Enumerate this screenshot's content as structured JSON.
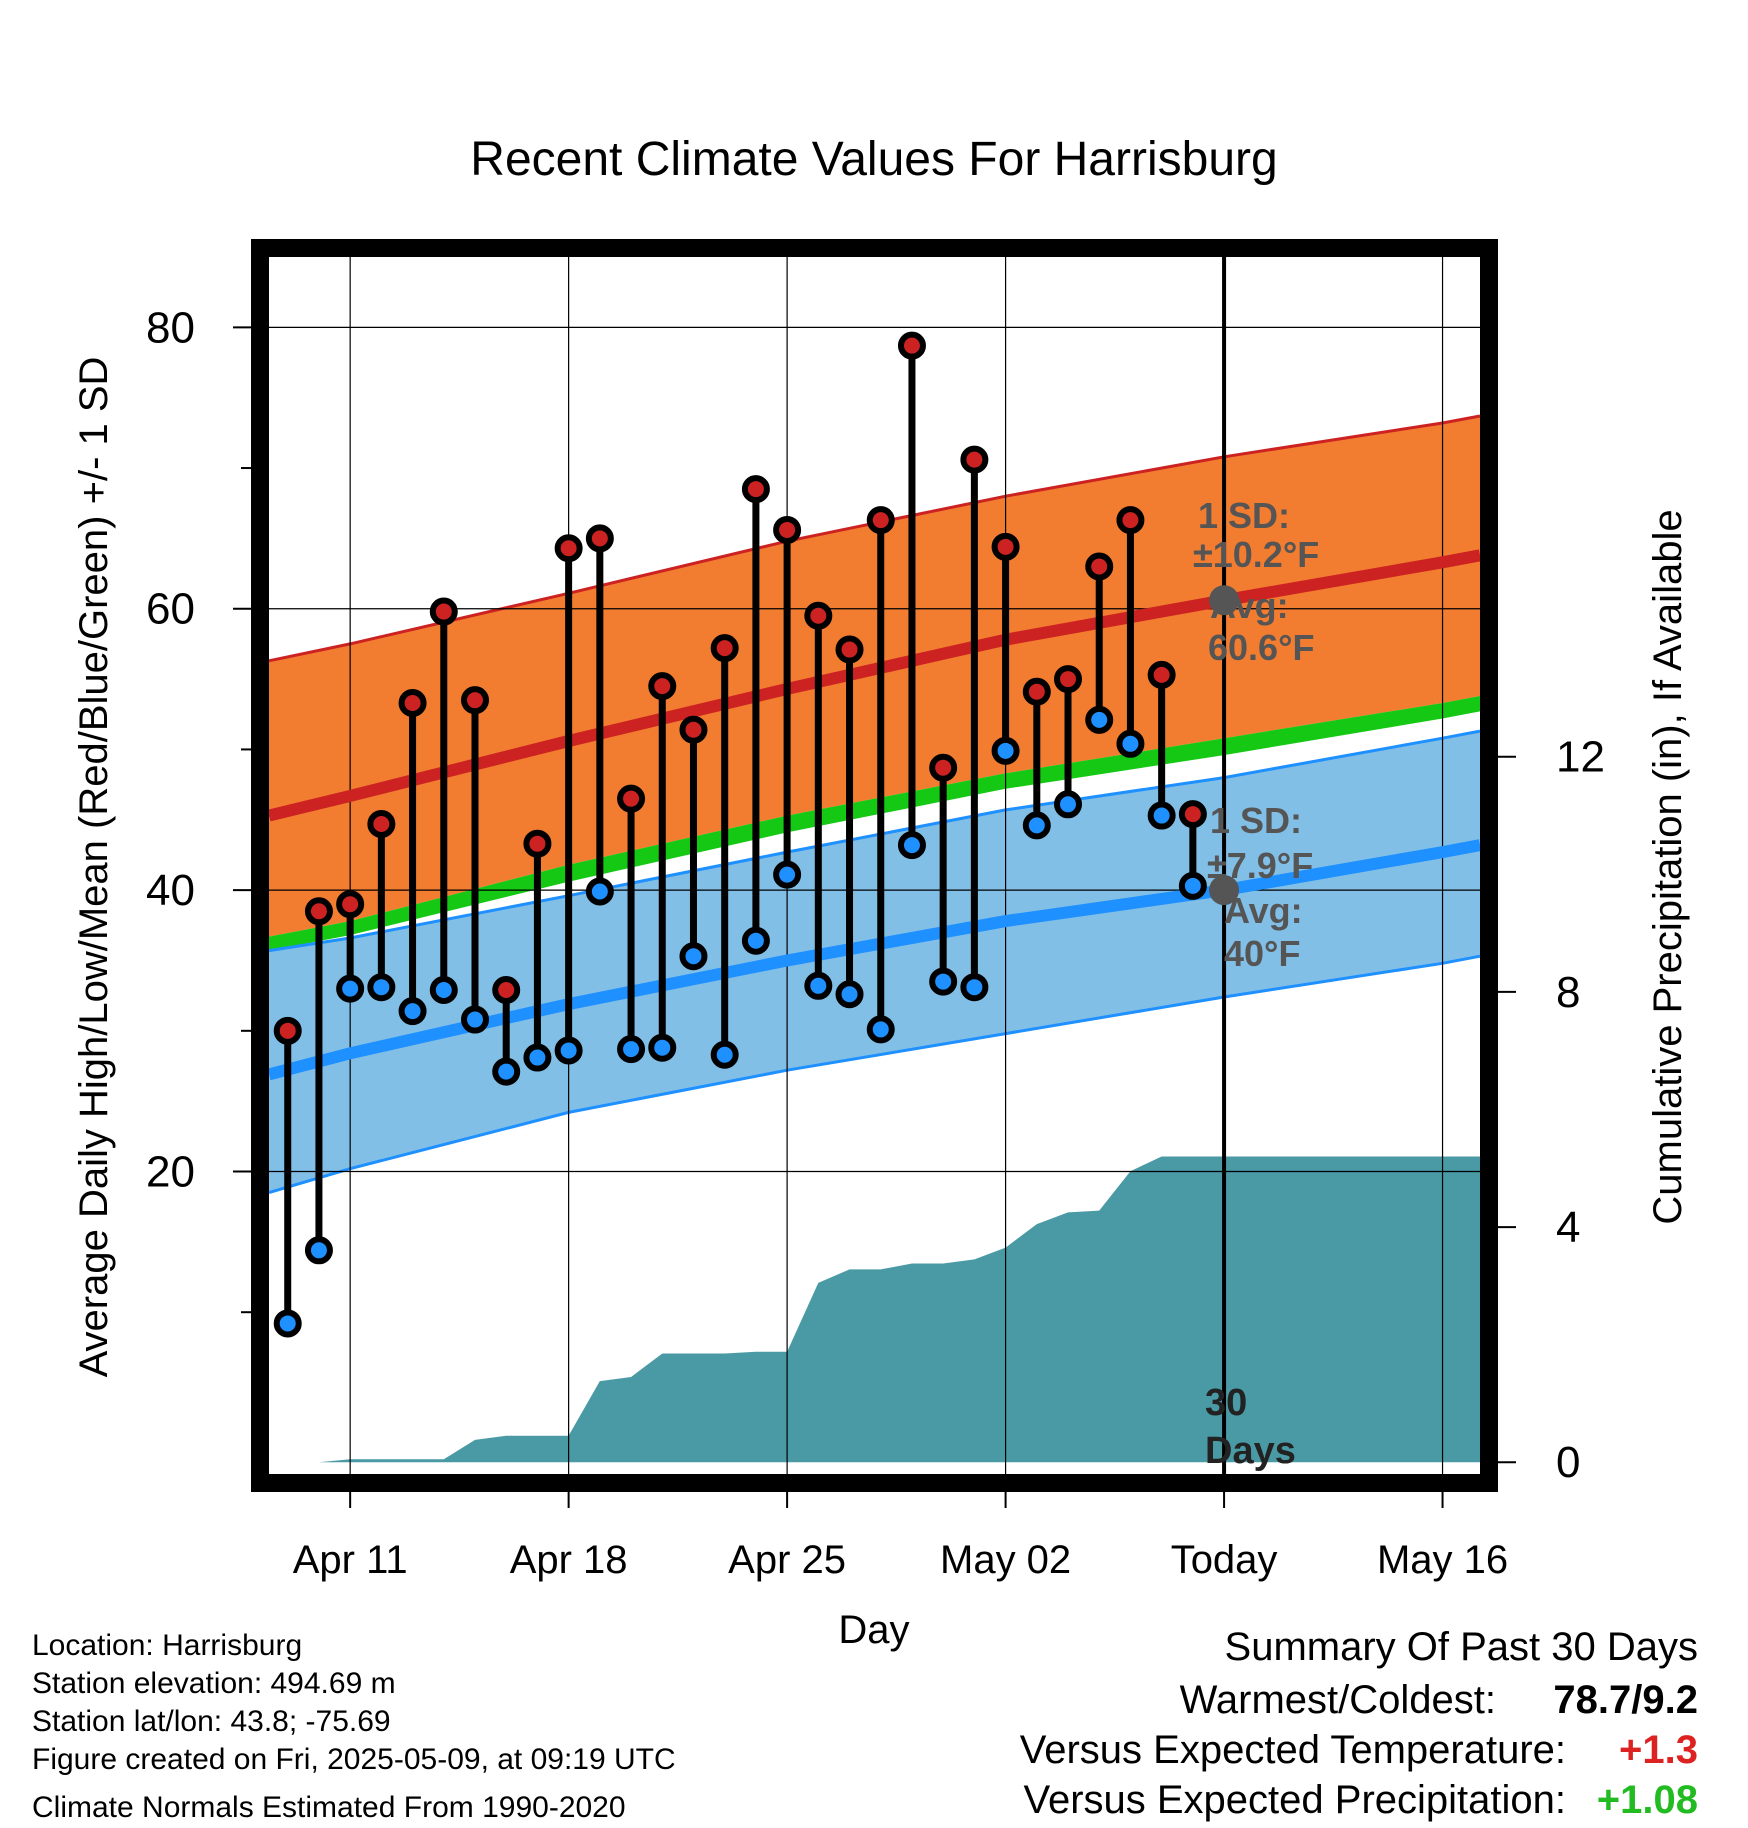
{
  "chart_data": {
    "type": "line",
    "title": "Recent Climate Values For Harrisburg",
    "xlabel": "Day",
    "ylabel": "Average Daily High/Low/Mean (Red/Blue/Green) +/- 1 SD",
    "y2label": "Cumulative Precipitation (in), If Available",
    "xlim": [
      -2.6,
      36.2
    ],
    "ylim": [
      -1.5,
      85
    ],
    "y2lim": [
      -0.2,
      20.5
    ],
    "x_ticks": [
      {
        "x": 0,
        "label": "Apr 11"
      },
      {
        "x": 7,
        "label": "Apr 18"
      },
      {
        "x": 14,
        "label": "Apr 25"
      },
      {
        "x": 21,
        "label": "May 02"
      },
      {
        "x": 28,
        "label": "Today"
      },
      {
        "x": 35,
        "label": "May 16"
      }
    ],
    "y_ticks": [
      20,
      40,
      60,
      80
    ],
    "y_minor_ticks": [
      10,
      30,
      50,
      70
    ],
    "y2_ticks": [
      0,
      4,
      8,
      12
    ],
    "grid": true,
    "today_x": 28,
    "today_label_line1": "30",
    "today_label_line2": "Days",
    "normals": {
      "x": [
        -2.6,
        0,
        7,
        14,
        21,
        28,
        35,
        36.2
      ],
      "high_mean": [
        45.3,
        46.7,
        50.6,
        54.3,
        57.8,
        60.6,
        63.3,
        63.8
      ],
      "high_upper": [
        56.3,
        57.5,
        61.1,
        64.8,
        68.0,
        70.8,
        73.2,
        73.7
      ],
      "mean_upper": [
        36.7,
        37.8,
        41.8,
        45.3,
        48.3,
        50.8,
        53.3,
        53.8
      ],
      "mean_lower": [
        35.7,
        36.8,
        40.6,
        44.1,
        47.2,
        49.6,
        52.2,
        52.7
      ],
      "low_upper": [
        35.7,
        36.6,
        39.6,
        42.7,
        45.7,
        48.0,
        50.8,
        51.3
      ],
      "low_mean": [
        26.9,
        28.4,
        31.9,
        35.0,
        37.8,
        40.0,
        42.7,
        43.2
      ],
      "low_lower": [
        18.5,
        20.2,
        24.2,
        27.2,
        29.8,
        32.4,
        34.8,
        35.3
      ]
    },
    "series": [
      {
        "name": "High",
        "color": "#cc2222",
        "x": [
          -2,
          -1,
          0,
          1,
          2,
          3,
          4,
          5,
          6,
          7,
          8,
          9,
          10,
          11,
          12,
          13,
          14,
          15,
          16,
          17,
          18,
          19,
          20,
          21,
          22,
          23,
          24,
          25,
          26,
          27
        ],
        "values": [
          30.0,
          38.5,
          39.0,
          44.7,
          53.3,
          59.8,
          53.5,
          32.9,
          43.3,
          64.3,
          65.0,
          46.5,
          54.5,
          51.4,
          57.2,
          68.5,
          65.6,
          59.5,
          57.1,
          66.3,
          78.7,
          48.7,
          70.6,
          64.4,
          54.1,
          55.0,
          63.0,
          66.3,
          55.3,
          45.4
        ]
      },
      {
        "name": "Low",
        "color": "#1e90ff",
        "x": [
          -2,
          -1,
          0,
          1,
          2,
          3,
          4,
          5,
          6,
          7,
          8,
          9,
          10,
          11,
          12,
          13,
          14,
          15,
          16,
          17,
          18,
          19,
          20,
          21,
          22,
          23,
          24,
          25,
          26,
          27
        ],
        "values": [
          9.2,
          14.4,
          33.0,
          33.1,
          31.4,
          32.9,
          30.8,
          27.1,
          28.1,
          28.6,
          39.9,
          28.7,
          28.8,
          35.3,
          28.3,
          36.4,
          41.1,
          33.2,
          32.6,
          30.1,
          43.2,
          33.5,
          33.1,
          49.9,
          44.6,
          46.1,
          52.1,
          50.4,
          45.3,
          40.3
        ]
      }
    ],
    "precipitation": {
      "name": "Cumulative Precipitation",
      "color": "#4a9aa5",
      "x": [
        -2,
        -1,
        0,
        1,
        2,
        3,
        4,
        5,
        6,
        7,
        8,
        9,
        10,
        11,
        12,
        13,
        14,
        15,
        16,
        17,
        18,
        19,
        20,
        21,
        22,
        23,
        24,
        25,
        26,
        27,
        28,
        36.2
      ],
      "values": [
        0,
        0,
        0.05,
        0.05,
        0.05,
        0.05,
        0.38,
        0.45,
        0.45,
        0.45,
        1.38,
        1.45,
        1.85,
        1.85,
        1.85,
        1.88,
        1.88,
        3.05,
        3.28,
        3.28,
        3.38,
        3.38,
        3.45,
        3.65,
        4.05,
        4.25,
        4.28,
        4.95,
        5.2,
        5.2,
        5.2,
        5.2
      ]
    },
    "annotations": {
      "high": {
        "line1": "1 SD:",
        "line2": "±10.2°F",
        "line3": "Avg:",
        "line4": "60.6°F",
        "avg_value": 60.6
      },
      "low": {
        "line1": "1 SD:",
        "line2": "±7.9°F",
        "line3": "Avg:",
        "line4": "40°F",
        "avg_value": 40.0
      }
    },
    "colors": {
      "high_band": "#f27c30",
      "high_line": "#cc2222",
      "mean_band": "#14c814",
      "low_band": "#82bfe6",
      "low_line": "#1e90ff",
      "precip": "#4a9aa5",
      "annotation": "#555555"
    }
  },
  "info": {
    "location": "Location: Harrisburg",
    "elevation": "Station elevation: 494.69 m",
    "latlon": "Station lat/lon: 43.8; -75.69",
    "created": "Figure created on Fri, 2025-05-09, at 09:19 UTC",
    "normals": "Climate Normals Estimated From 1990-2020"
  },
  "summary": {
    "title": "Summary Of Past 30 Days",
    "warmest_label": "Warmest/Coldest:",
    "warmest_value": "78.7/9.2",
    "temp_label": "Versus Expected Temperature:",
    "temp_value": "+1.3",
    "temp_color": "#dd2222",
    "precip_label": "Versus Expected Precipitation:",
    "precip_value": "+1.08",
    "precip_color": "#22bb22"
  }
}
